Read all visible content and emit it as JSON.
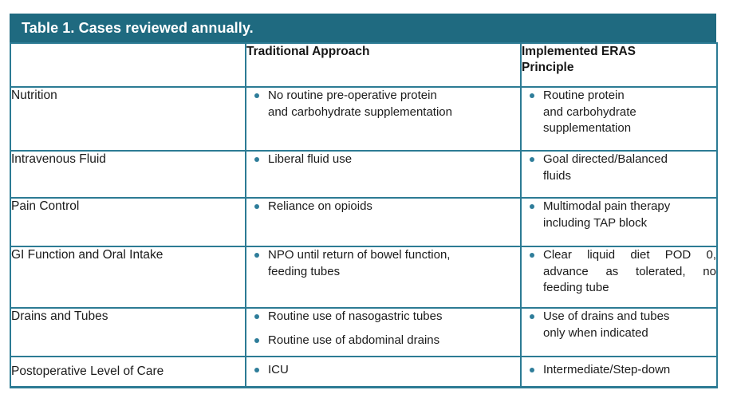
{
  "colors": {
    "header_bg": "#1f6a80",
    "border": "#2c7b94",
    "bullet": "#2e7d9a",
    "text": "#1b1b1b",
    "title_text": "#ffffff"
  },
  "table": {
    "title": "Table 1. Cases reviewed annually.",
    "headers": {
      "row_label": "",
      "traditional": "Traditional Approach",
      "eras": "Implemented ERAS\nPrinciple"
    },
    "rows": [
      {
        "label": "Nutrition",
        "traditional": [
          "No routine pre-operative protein\nand carbohydrate supplementation"
        ],
        "eras": [
          "Routine protein\nand carbohydrate\nsupplementation"
        ]
      },
      {
        "label": "Intravenous Fluid",
        "traditional": [
          "Liberal fluid use"
        ],
        "eras": [
          "Goal directed/Balanced\nfluids"
        ]
      },
      {
        "label": "Pain Control",
        "traditional": [
          "Reliance on opioids"
        ],
        "eras": [
          "Multimodal pain therapy\nincluding TAP block"
        ]
      },
      {
        "label": "GI Function and Oral Intake",
        "traditional": [
          "NPO until return of bowel function,\nfeeding tubes"
        ],
        "eras": [
          "Clear liquid diet POD 0, advance as tolerated, no feeding tube"
        ]
      },
      {
        "label": "Drains and Tubes",
        "traditional": [
          "Routine use of nasogastric tubes",
          "Routine use of abdominal drains"
        ],
        "eras": [
          "Use of drains and tubes\nonly when indicated"
        ]
      },
      {
        "label": "Postoperative Level of Care",
        "traditional": [
          "ICU"
        ],
        "eras": [
          "Intermediate/Step-down"
        ]
      }
    ]
  }
}
